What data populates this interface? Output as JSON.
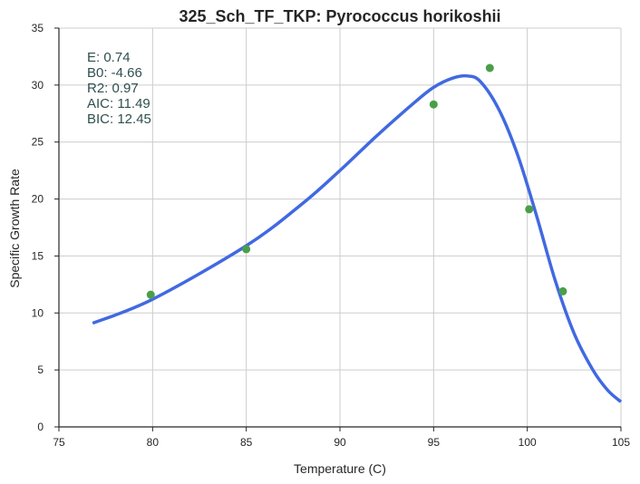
{
  "chart_data": {
    "type": "scatter",
    "title": "325_Sch_TF_TKP: Pyrococcus horikoshii",
    "xlabel": "Temperature (C)",
    "ylabel": "Specific Growth Rate",
    "xlim": [
      75,
      105
    ],
    "ylim": [
      0,
      35
    ],
    "x_ticks": [
      "75",
      "80",
      "85",
      "90",
      "95",
      "100",
      "105"
    ],
    "y_ticks": [
      "0",
      "5",
      "10",
      "15",
      "20",
      "25",
      "30",
      "35"
    ],
    "grid": true,
    "colors": {
      "points": "#4a9e4a",
      "fit": "#4169e1",
      "annotation": "#2f4f4f"
    },
    "points": {
      "x": [
        79.9,
        85.0,
        95.0,
        98.0,
        100.1,
        101.9
      ],
      "y": [
        11.6,
        15.6,
        28.3,
        31.5,
        19.1,
        11.9
      ]
    },
    "fit": {
      "x": [
        76.8,
        80,
        85,
        88,
        90,
        92,
        94,
        95,
        96,
        96.8,
        97.5,
        98.5,
        99.5,
        100.5,
        101.5,
        102.5,
        103.5,
        104.3,
        105
      ],
      "y": [
        9.1,
        11.2,
        15.9,
        19.6,
        22.5,
        25.6,
        28.5,
        29.8,
        30.6,
        30.8,
        30.3,
        27.8,
        23.8,
        18.5,
        12.8,
        8.2,
        5.0,
        3.2,
        2.2
      ]
    },
    "annotation_lines": [
      "E:  0.74",
      "B0:  -4.66",
      "R2:  0.97",
      "AIC: 11.49",
      "BIC: 12.45"
    ]
  }
}
